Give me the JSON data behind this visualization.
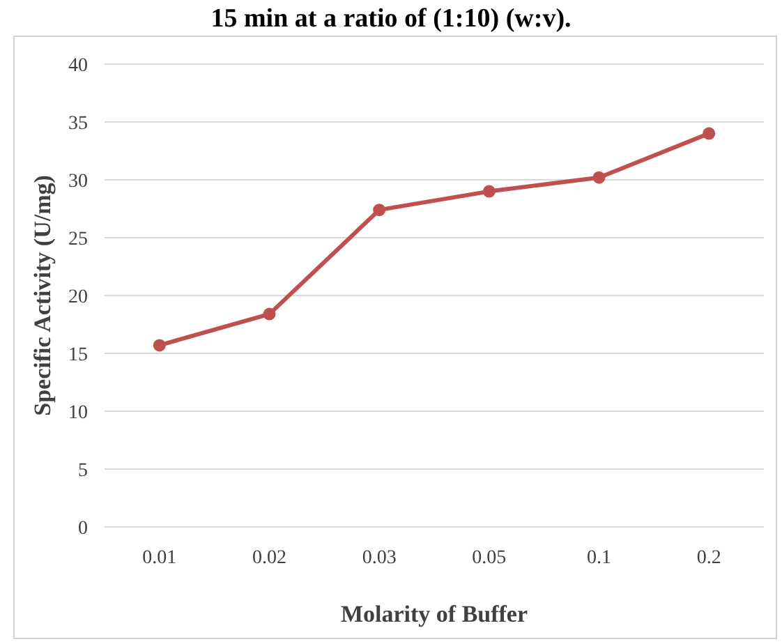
{
  "chart_data": {
    "type": "line",
    "title": "15 min at a ratio of (1:10) (w:v).",
    "xlabel": "Molarity of Buffer",
    "ylabel": "Specific Activity (U/mg)",
    "categories": [
      "0.01",
      "0.02",
      "0.03",
      "0.05",
      "0.1",
      "0.2"
    ],
    "series": [
      {
        "color": "#c0504d",
        "values": [
          15.7,
          18.4,
          27.4,
          29.0,
          30.2,
          34.0
        ]
      }
    ],
    "ylim": [
      0,
      40
    ],
    "yticks": [
      0,
      5,
      10,
      15,
      20,
      25,
      30,
      35,
      40
    ],
    "grid": "y",
    "marker": "circle",
    "line_style": "solid"
  }
}
